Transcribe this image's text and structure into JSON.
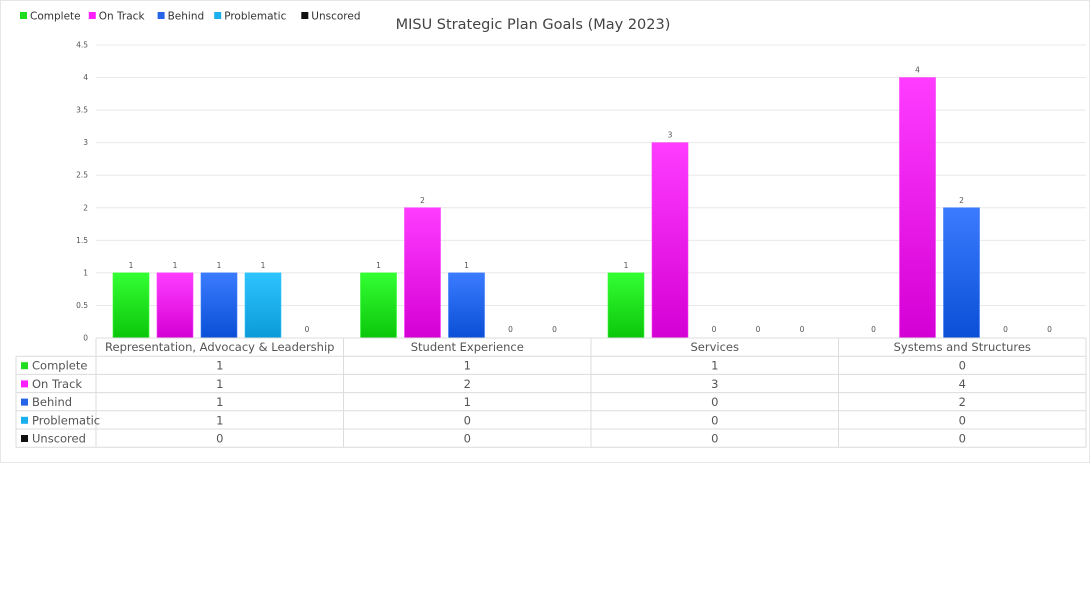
{
  "chart_data": {
    "type": "bar",
    "title": "MISU Strategic Plan Goals (May 2023)",
    "categories": [
      "Representation, Advocacy & Leadership",
      "Student Experience",
      "Services",
      "Systems and Structures"
    ],
    "series": [
      {
        "name": "Complete",
        "values": [
          1,
          1,
          1,
          0
        ],
        "color": "#1fdc1f",
        "color_light": "#33ff33",
        "color_dark": "#0bc60b"
      },
      {
        "name": "On Track",
        "values": [
          1,
          2,
          3,
          4
        ],
        "color": "#ff1eff",
        "color_light": "#ff3cff",
        "color_dark": "#d400d4"
      },
      {
        "name": "Behind",
        "values": [
          1,
          1,
          0,
          2
        ],
        "color": "#2563e8",
        "color_light": "#3b7bff",
        "color_dark": "#0a4fd6"
      },
      {
        "name": "Problematic",
        "values": [
          1,
          0,
          0,
          0
        ],
        "color": "#1ab0ee",
        "color_light": "#2ec4ff",
        "color_dark": "#0a9ad8"
      },
      {
        "name": "Unscored",
        "values": [
          0,
          0,
          0,
          0
        ],
        "color": "#111111",
        "color_light": "#333333",
        "color_dark": "#000000"
      }
    ],
    "ylim": [
      0,
      4.5
    ],
    "yticks": [
      "0",
      "0.5",
      "1",
      "1.5",
      "2",
      "2.5",
      "3",
      "3.5",
      "4",
      "4.5"
    ],
    "legend": "top-left",
    "grid": true,
    "data_table": true
  }
}
